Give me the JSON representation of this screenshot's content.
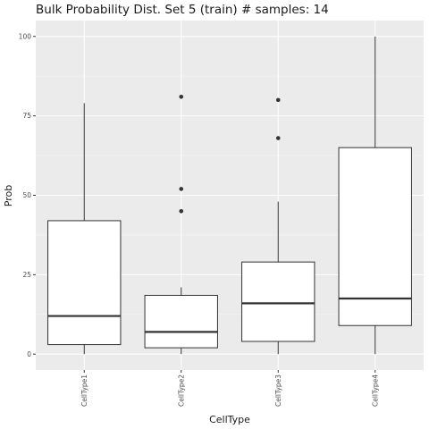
{
  "chart_data": {
    "type": "boxplot",
    "title": "Bulk Probability Dist. Set 5 (train) # samples: 14",
    "xlabel": "CellType",
    "ylabel": "Prob",
    "ylim": [
      -5,
      105
    ],
    "y_ticks": [
      0,
      25,
      50,
      75,
      100
    ],
    "y_tick_labels": [
      "0",
      "25",
      "50",
      "75",
      "100"
    ],
    "grid": true,
    "legend": "none",
    "categories": [
      "CellType1",
      "CellType2",
      "CellType3",
      "CellType4"
    ],
    "boxes": [
      {
        "category": "CellType1",
        "whisker_low": 0,
        "q1": 3,
        "median": 12,
        "q3": 42,
        "whisker_high": 79,
        "outliers": []
      },
      {
        "category": "CellType2",
        "whisker_low": 0,
        "q1": 2,
        "median": 7,
        "q3": 18.5,
        "whisker_high": 21,
        "outliers": [
          45,
          52,
          81
        ]
      },
      {
        "category": "CellType3",
        "whisker_low": 0,
        "q1": 4,
        "median": 16,
        "q3": 29,
        "whisker_high": 48,
        "outliers": [
          68,
          80
        ]
      },
      {
        "category": "CellType4",
        "whisker_low": 0,
        "q1": 9,
        "median": 17.5,
        "q3": 65,
        "whisker_high": 100,
        "outliers": []
      }
    ],
    "colors": {
      "panel_background": "#ebebeb",
      "grid_major": "#ffffff",
      "grid_minor": "#f5f5f5",
      "box_fill": "#ffffff",
      "box_line": "#333333"
    }
  }
}
